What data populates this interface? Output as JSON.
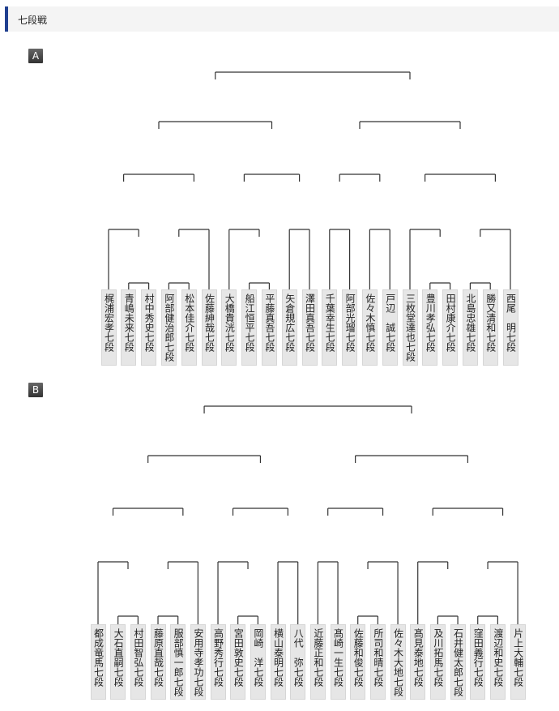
{
  "header": {
    "title": "七段戦"
  },
  "groups": [
    {
      "label": "A",
      "players": [
        "梶浦宏孝七段",
        "青嶋未来七段",
        "村中秀史七段",
        "阿部健治郎七段",
        "松本佳介七段",
        "佐藤紳哉七段",
        "大橋貴洸七段",
        "船江恒平七段",
        "平藤真吾七段",
        "矢倉規広七段",
        "澤田真吾七段",
        "千葉幸生七段",
        "阿部光瑠七段",
        "佐々木慎七段",
        "戸辺　誠七段",
        "三枚堂達也七段",
        "豊川孝弘七段",
        "田村康介七段",
        "北島忠雄七段",
        "勝又清和七段",
        "西尾　明七段"
      ],
      "bracket": [
        [
          [
            [
              0,
              [
                1,
                2
              ]
            ],
            [
              [
                3,
                4
              ],
              5
            ]
          ],
          [
            [
              6,
              [
                7,
                8
              ]
            ],
            [
              9,
              10
            ]
          ]
        ],
        [
          [
            [
              11,
              12
            ],
            [
              13,
              14
            ]
          ],
          [
            [
              15,
              [
                16,
                17
              ]
            ],
            [
              [
                18,
                19
              ],
              20
            ]
          ]
        ]
      ]
    },
    {
      "label": "B",
      "players": [
        "都成竜馬七段",
        "大石直嗣七段",
        "村田智弘七段",
        "藤原直哉七段",
        "服部慎一郎七段",
        "安用寺孝功七段",
        "高野秀行七段",
        "宮田敦史七段",
        "岡崎　洋七段",
        "横山泰明七段",
        "八代　弥七段",
        "近藤正和七段",
        "髙崎一生七段",
        "佐藤和俊七段",
        "所司和晴七段",
        "佐々木大地七段",
        "髙見泰地七段",
        "及川拓馬七段",
        "石井健太郎七段",
        "窪田義行七段",
        "渡辺和史七段",
        "片上大輔七段"
      ],
      "bracket": [
        [
          [
            [
              0,
              [
                1,
                2
              ]
            ],
            [
              [
                3,
                4
              ],
              5
            ]
          ],
          [
            [
              6,
              [
                7,
                8
              ]
            ],
            [
              9,
              10
            ]
          ]
        ],
        [
          [
            [
              11,
              12
            ],
            [
              [
                13,
                14
              ],
              15
            ]
          ],
          [
            [
              16,
              [
                17,
                18
              ]
            ],
            [
              [
                19,
                20
              ],
              21
            ]
          ]
        ]
      ]
    }
  ]
}
